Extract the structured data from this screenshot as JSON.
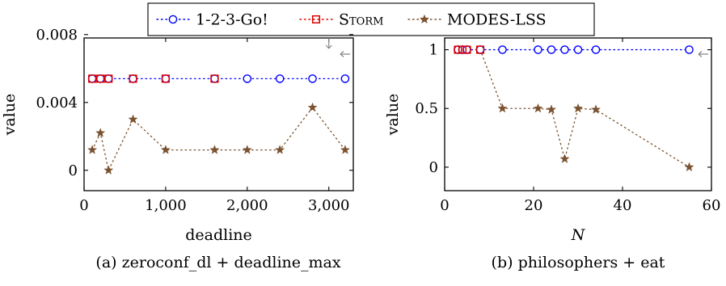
{
  "legend": {
    "placement": "top-center",
    "entries": [
      {
        "text": "1-2-3-Go!",
        "color": "#0000ff",
        "marker": "circle",
        "small_caps": false
      },
      {
        "text": "Storm",
        "color": "#dd0000",
        "marker": "square",
        "small_caps": true
      },
      {
        "text": "MODES-LSS",
        "color": "#7a5230",
        "marker": "star",
        "small_caps": false
      }
    ]
  },
  "chart_data": [
    {
      "type": "scatter",
      "caption": "(a) zeroconf_dl + deadline_max",
      "xlabel": "deadline",
      "xlabel_italic": false,
      "ylabel": "value",
      "xlim": [
        0,
        3300
      ],
      "ylim": [
        -0.0012,
        0.0078
      ],
      "xticks": [
        0,
        1000,
        2000,
        3000
      ],
      "xtick_labels": [
        "0",
        "1,000",
        "2,000",
        "3,000"
      ],
      "yticks": [
        0,
        0.004,
        0.008
      ],
      "ytick_labels": [
        "0",
        "0.004",
        "0.008"
      ],
      "grid": false,
      "series": [
        {
          "name": "1-2-3-Go!",
          "x": [
            100,
            200,
            300,
            600,
            1000,
            1600,
            2000,
            2400,
            2800,
            3200
          ],
          "y": [
            0.0054,
            0.0054,
            0.0054,
            0.0054,
            0.0054,
            0.0054,
            0.0054,
            0.0054,
            0.0054,
            0.0054
          ]
        },
        {
          "name": "Storm",
          "x": [
            100,
            200,
            300,
            600,
            1000,
            1600
          ],
          "y": [
            0.0054,
            0.0054,
            0.0054,
            0.0054,
            0.0054,
            0.0054
          ]
        },
        {
          "name": "MODES-LSS",
          "x": [
            100,
            200,
            300,
            600,
            1000,
            1600,
            2000,
            2400,
            2800,
            3200
          ],
          "y": [
            0.0012,
            0.0022,
            0.0,
            0.003,
            0.0012,
            0.0012,
            0.0012,
            0.0012,
            0.0037,
            0.0012
          ]
        }
      ]
    },
    {
      "type": "scatter",
      "caption": "(b) philosophers + eat",
      "xlabel": "N",
      "xlabel_italic": true,
      "ylabel": "value",
      "xlim": [
        0,
        60
      ],
      "ylim": [
        -0.2,
        1.1
      ],
      "xticks": [
        0,
        20,
        40,
        60
      ],
      "xtick_labels": [
        "0",
        "20",
        "40",
        "60"
      ],
      "yticks": [
        0,
        0.5,
        1
      ],
      "ytick_labels": [
        "0",
        "0.5",
        "1"
      ],
      "grid": false,
      "series": [
        {
          "name": "1-2-3-Go!",
          "x": [
            3,
            4,
            5,
            8,
            13,
            21,
            24,
            27,
            30,
            34,
            55
          ],
          "y": [
            1,
            1,
            1,
            1,
            1,
            1,
            1,
            1,
            1,
            1,
            1
          ]
        },
        {
          "name": "Storm",
          "x": [
            3,
            4,
            5,
            8
          ],
          "y": [
            1,
            1,
            1,
            1
          ]
        },
        {
          "name": "MODES-LSS",
          "x": [
            3,
            4,
            5,
            8,
            13,
            21,
            24,
            27,
            30,
            34,
            55
          ],
          "y": [
            1,
            1,
            1,
            1,
            0.5,
            0.5,
            0.49,
            0.07,
            0.5,
            0.49,
            0
          ]
        }
      ]
    }
  ]
}
